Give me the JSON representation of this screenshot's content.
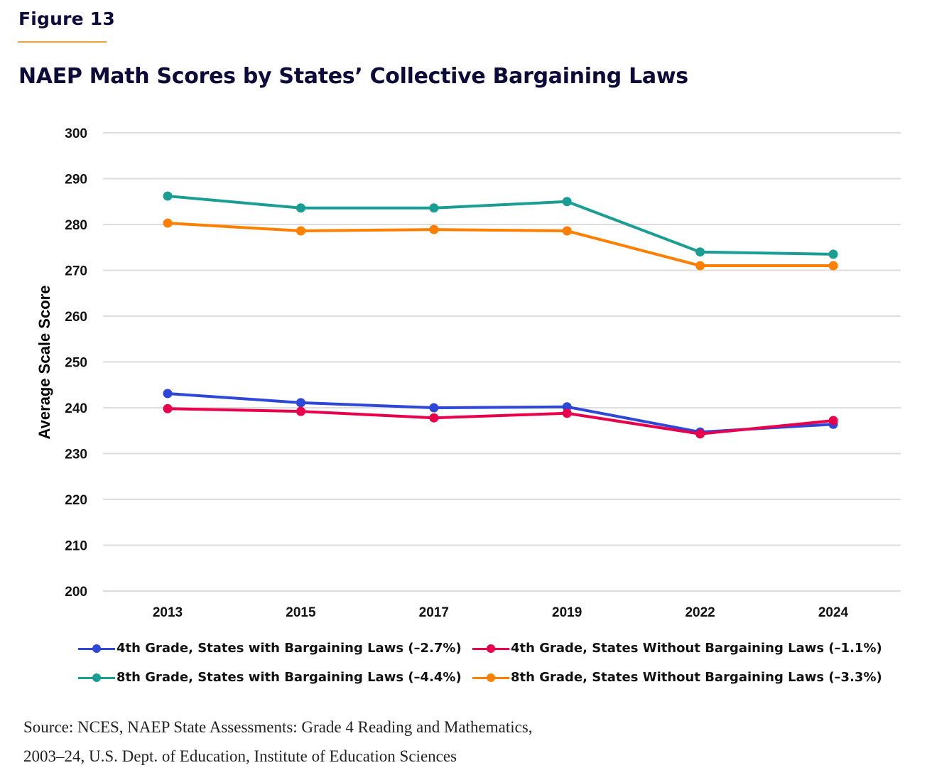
{
  "figure_label": "Figure 13",
  "title": "NAEP Math Scores by States’ Collective Bargaining Laws",
  "source_lines": [
    "Source: NCES, NAEP State Assessments: Grade 4 Reading and Mathematics,",
    "2003–24, U.S. Dept. of Education, Institute of Education Sciences"
  ],
  "colors": {
    "accent_rule": "#e8a33c",
    "title": "#0c0b3a"
  },
  "chart_data": {
    "type": "line",
    "title": "NAEP Math Scores by States’ Collective Bargaining Laws",
    "xlabel": "",
    "ylabel": "Average Scale Score",
    "x": [
      "2013",
      "2015",
      "2017",
      "2019",
      "2022",
      "2024"
    ],
    "ylim": [
      200,
      300
    ],
    "yticks": [
      200,
      210,
      220,
      230,
      240,
      250,
      260,
      270,
      280,
      290,
      300
    ],
    "grid": true,
    "legend_position": "bottom",
    "series": [
      {
        "name": "4th Grade, States with Bargaining Laws (–2.7%)",
        "color": "#2e47d6",
        "values": [
          243.1,
          241.1,
          240.0,
          240.2,
          234.7,
          236.4
        ]
      },
      {
        "name": "4th Grade, States Without Bargaining Laws (–1.1%)",
        "color": "#e8004c",
        "values": [
          239.8,
          239.2,
          237.8,
          238.8,
          234.3,
          237.2
        ]
      },
      {
        "name": "8th Grade, States with Bargaining Laws (–4.4%)",
        "color": "#1a9e93",
        "values": [
          286.2,
          283.6,
          283.6,
          285.0,
          274.0,
          273.5
        ]
      },
      {
        "name": "8th Grade, States Without Bargaining Laws (–3.3%)",
        "color": "#ff8000",
        "values": [
          280.3,
          278.6,
          278.9,
          278.6,
          271.0,
          271.0
        ]
      }
    ]
  }
}
